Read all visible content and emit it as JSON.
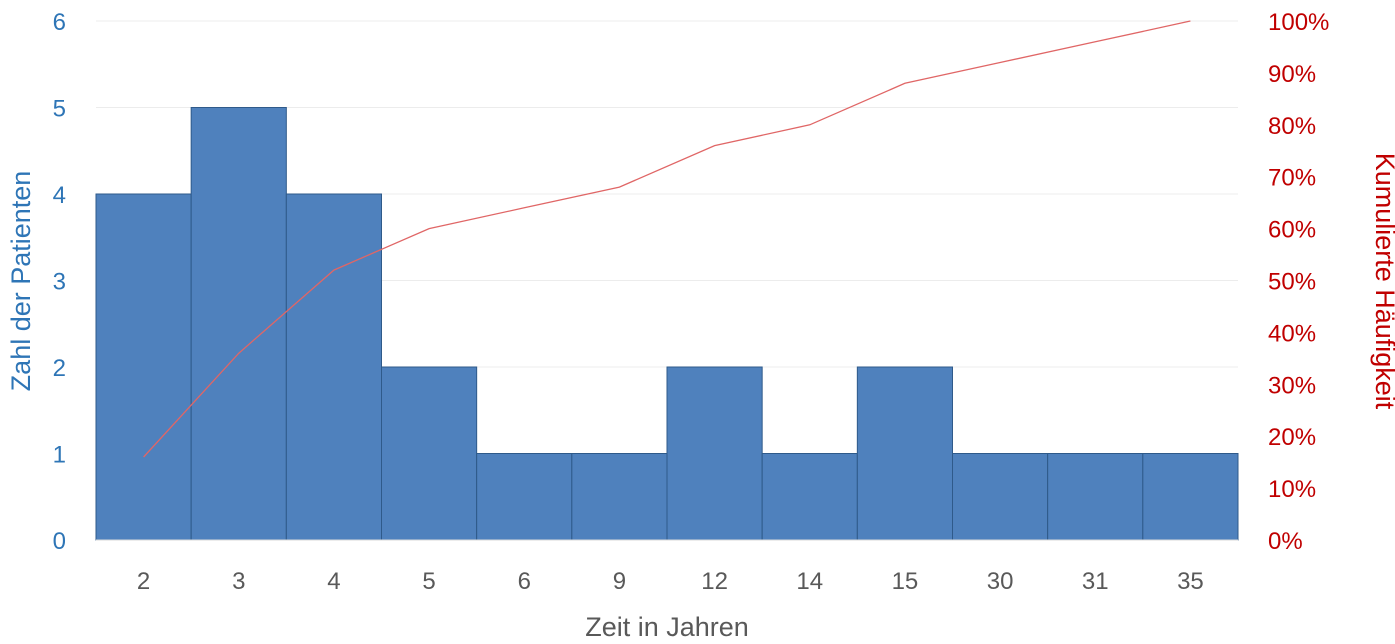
{
  "chart_data": {
    "type": "bar",
    "title": "",
    "xlabel": "Zeit in Jahren",
    "ylabel": "Zahl der Patienten",
    "y2label": "Kumulierte Häufigkeit",
    "categories": [
      "2",
      "3",
      "4",
      "5",
      "6",
      "9",
      "12",
      "14",
      "15",
      "30",
      "31",
      "35"
    ],
    "series": [
      {
        "name": "Zahl der Patienten",
        "type": "bar",
        "axis": "left",
        "color": "#4f81bd",
        "values": [
          4,
          5,
          4,
          2,
          1,
          1,
          2,
          1,
          2,
          1,
          1,
          1
        ]
      },
      {
        "name": "Kumulierte Häufigkeit",
        "type": "line",
        "axis": "right",
        "color": "#e06666",
        "values": [
          16,
          36,
          52,
          60,
          64,
          68,
          76,
          80,
          88,
          92,
          96,
          100
        ]
      }
    ],
    "ylim": [
      0,
      6
    ],
    "yticks": [
      "0",
      "1",
      "2",
      "3",
      "4",
      "5",
      "6"
    ],
    "y2lim": [
      0,
      100
    ],
    "y2ticks": [
      "0%",
      "10%",
      "20%",
      "30%",
      "40%",
      "50%",
      "60%",
      "70%",
      "80%",
      "90%",
      "100%"
    ],
    "grid": true,
    "legend": "none"
  }
}
